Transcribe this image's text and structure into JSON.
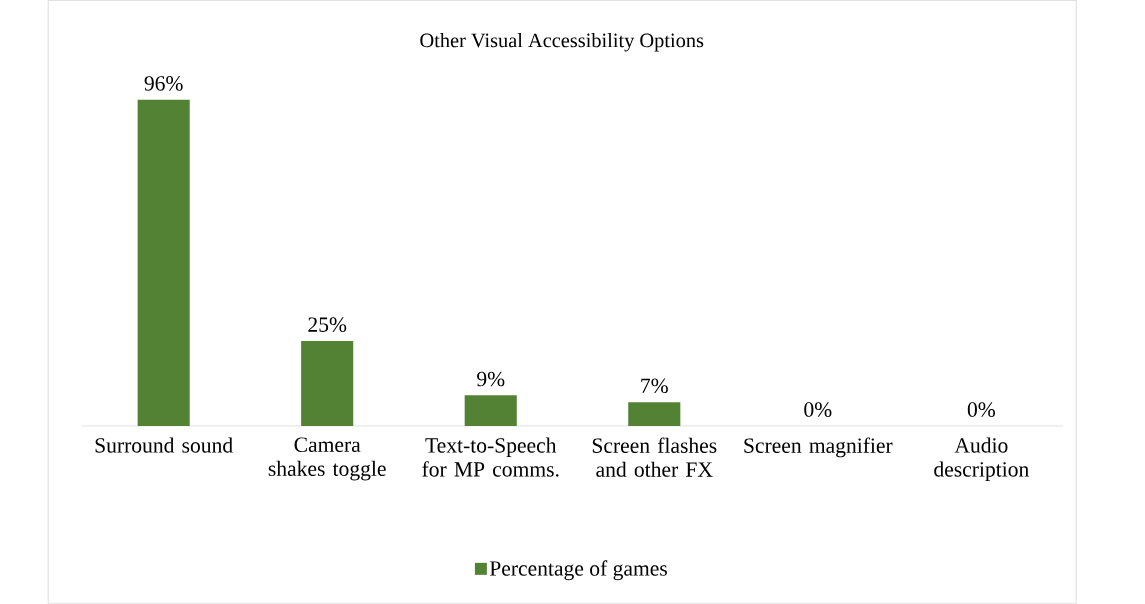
{
  "chart_data": {
    "type": "bar",
    "title": "Other Visual Accessibility Options",
    "categories": [
      "Surround sound",
      "Camera shakes toggle",
      "Text-to-Speech for MP comms.",
      "Screen flashes and other FX",
      "Screen magnifier",
      "Audio description"
    ],
    "series": [
      {
        "name": "Percentage of games",
        "color": "#548235",
        "values": [
          96,
          25,
          9,
          7,
          0,
          0
        ],
        "value_labels": [
          "96%",
          "25%",
          "9%",
          "7%",
          "0%",
          "0%"
        ]
      }
    ],
    "legend": "bottom",
    "grid": false
  }
}
